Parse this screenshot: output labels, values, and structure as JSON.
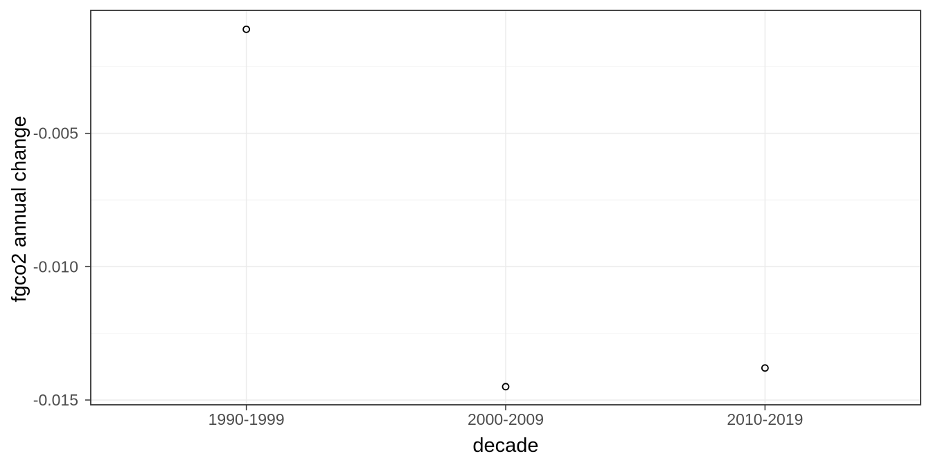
{
  "chart_data": {
    "type": "scatter",
    "title": "",
    "xlabel": "decade",
    "ylabel": "fgco2 annual change",
    "categories": [
      "1990-1999",
      "2000-2009",
      "2010-2019"
    ],
    "values": [
      -0.0011,
      -0.0145,
      -0.0138
    ],
    "ylim": [
      -0.01518,
      -0.00039
    ],
    "y_ticks": [
      {
        "value": -0.005,
        "label": "-0.005"
      },
      {
        "value": -0.01,
        "label": "-0.010"
      },
      {
        "value": -0.015,
        "label": "-0.015"
      }
    ],
    "y_minor_ticks": [
      -0.0025,
      -0.0075,
      -0.0125
    ],
    "grid": "on",
    "legend": "none",
    "point_style": "open-circle",
    "colors": {
      "background": "#ffffff",
      "panel_background": "#ffffff",
      "panel_border": "#333333",
      "grid_major": "#ebebeb",
      "grid_minor": "#f3f3f3",
      "tick_mark": "#333333",
      "axis_text": "#4d4d4d",
      "axis_title": "#000000",
      "point": "#000000"
    }
  }
}
